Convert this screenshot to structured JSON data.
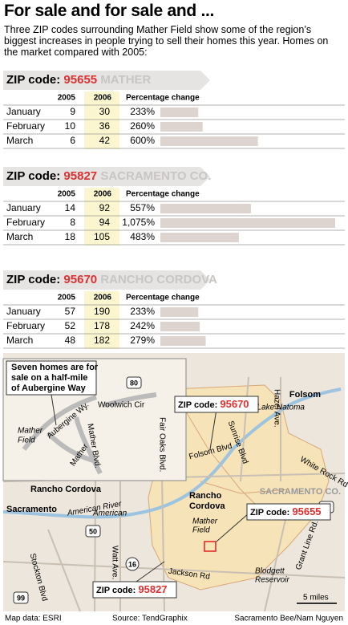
{
  "title": "For sale and for sale and ...",
  "intro": "Three ZIP codes surrounding Mather Field show some of the region’s biggest increases in people trying to sell their homes this year. Homes on the market compared with 2005:",
  "tables": [
    {
      "zip_label": "ZIP code:",
      "zip": "95655",
      "area": "MATHER",
      "columns": [
        "2005",
        "2006",
        "Percentage change"
      ],
      "rows": [
        {
          "month": "January",
          "y2005": 9,
          "y2006": 30,
          "pct": 233,
          "pct_label": "233%"
        },
        {
          "month": "February",
          "y2005": 10,
          "y2006": 36,
          "pct": 260,
          "pct_label": "260%"
        },
        {
          "month": "March",
          "y2005": 6,
          "y2006": 42,
          "pct": 600,
          "pct_label": "600%"
        }
      ]
    },
    {
      "zip_label": "ZIP code:",
      "zip": "95827",
      "area": "SACRAMENTO CO.",
      "columns": [
        "2005",
        "2006",
        "Percentage change"
      ],
      "rows": [
        {
          "month": "January",
          "y2005": 14,
          "y2006": 92,
          "pct": 557,
          "pct_label": "557%"
        },
        {
          "month": "February",
          "y2005": 8,
          "y2006": 94,
          "pct": 1075,
          "pct_label": "1,075%"
        },
        {
          "month": "March",
          "y2005": 18,
          "y2006": 105,
          "pct": 483,
          "pct_label": "483%"
        }
      ]
    },
    {
      "zip_label": "ZIP code:",
      "zip": "95670",
      "area": "RANCHO CORDOVA",
      "columns": [
        "2005",
        "2006",
        "Percentage change"
      ],
      "rows": [
        {
          "month": "January",
          "y2005": 57,
          "y2006": 190,
          "pct": 233,
          "pct_label": "233%"
        },
        {
          "month": "February",
          "y2005": 52,
          "y2006": 178,
          "pct": 242,
          "pct_label": "242%"
        },
        {
          "month": "March",
          "y2005": 48,
          "y2006": 182,
          "pct": 279,
          "pct_label": "279%"
        }
      ]
    }
  ],
  "map": {
    "callout": [
      "Seven homes are for",
      "sale on a half-mile",
      "of Aubergine Way"
    ],
    "inset_labels": [
      "Mather",
      "Field",
      "Aubergine Wy.",
      "Woolwich Cir",
      "Mather Blvd.",
      "Mather"
    ],
    "labels": [
      "Rancho Cordova",
      "Sacramento",
      "American River",
      "Folsom",
      "Lake Natoma",
      "Hazel Ave.",
      "Fair Oaks Blvd.",
      "Folsom Blvd",
      "Sunrise Blvd",
      "White Rock Rd",
      "SACRAMENTO CO.",
      [
        "Rancho",
        "Cordova"
      ],
      [
        "Mather",
        "Field"
      ],
      "American",
      "Watt Ave.",
      "Stockton Blvd",
      "Jackson Rd",
      [
        "Blodgett",
        "Reservoir"
      ],
      "Grant Line Rd."
    ],
    "shields": [
      "80",
      "50",
      "50",
      "16",
      "99"
    ],
    "zip_callouts": [
      {
        "label": "ZIP code:",
        "zip": "95670"
      },
      {
        "label": "ZIP code:",
        "zip": "95655"
      },
      {
        "label": "ZIP code:",
        "zip": "95827"
      }
    ],
    "scale": "5 miles"
  },
  "credits": [
    "Map data: ESRI",
    "Source: TendGraphix",
    "Sacramento Bee/Nam Nguyen"
  ]
}
